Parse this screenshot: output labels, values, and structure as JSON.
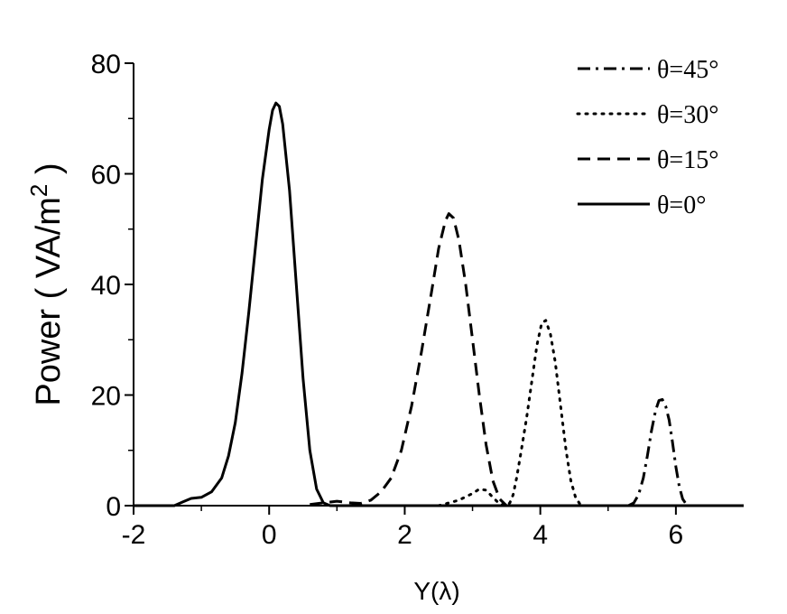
{
  "chart_data": {
    "type": "line",
    "title": "",
    "xlabel": "Y(λ)",
    "ylabel": "Power ( VA/m²)",
    "ylabel_main": "Power ( VA/m",
    "ylabel_sup": "2",
    "ylabel_end": " )",
    "xlim": [
      -2,
      7
    ],
    "ylim": [
      0,
      80
    ],
    "x_ticks": [
      -2,
      0,
      2,
      4,
      6
    ],
    "y_ticks": [
      0,
      20,
      40,
      60,
      80
    ],
    "grid": false,
    "legend_position": "top-right",
    "series": [
      {
        "name": "θ=45°",
        "dash": "dash-dot",
        "points": [
          [
            5.3,
            0
          ],
          [
            5.38,
            0.5
          ],
          [
            5.45,
            2
          ],
          [
            5.52,
            5
          ],
          [
            5.58,
            9
          ],
          [
            5.64,
            13.5
          ],
          [
            5.7,
            17.2
          ],
          [
            5.75,
            19
          ],
          [
            5.8,
            19.2
          ],
          [
            5.85,
            18
          ],
          [
            5.9,
            15.5
          ],
          [
            5.95,
            11.5
          ],
          [
            6.0,
            7
          ],
          [
            6.05,
            3.5
          ],
          [
            6.1,
            1.2
          ],
          [
            6.15,
            0.3
          ],
          [
            6.2,
            0
          ]
        ]
      },
      {
        "name": "θ=30°",
        "dash": "dotted",
        "points": [
          [
            2.5,
            0
          ],
          [
            2.8,
            1
          ],
          [
            3.0,
            2.2
          ],
          [
            3.1,
            3
          ],
          [
            3.2,
            2.8
          ],
          [
            3.3,
            1.5
          ],
          [
            3.4,
            0.3
          ],
          [
            3.5,
            0
          ],
          [
            3.55,
            0.5
          ],
          [
            3.6,
            2
          ],
          [
            3.65,
            5
          ],
          [
            3.72,
            10
          ],
          [
            3.8,
            16
          ],
          [
            3.88,
            23
          ],
          [
            3.95,
            29
          ],
          [
            4.02,
            33
          ],
          [
            4.08,
            33.5
          ],
          [
            4.15,
            31
          ],
          [
            4.22,
            26
          ],
          [
            4.3,
            18
          ],
          [
            4.38,
            10
          ],
          [
            4.45,
            4.5
          ],
          [
            4.52,
            1.5
          ],
          [
            4.6,
            0
          ]
        ]
      },
      {
        "name": "θ=15°",
        "dash": "dashed",
        "points": [
          [
            0.6,
            0.2
          ],
          [
            0.8,
            0.5
          ],
          [
            1.0,
            0.8
          ],
          [
            1.2,
            0.5
          ],
          [
            1.35,
            0.4
          ],
          [
            1.5,
            1
          ],
          [
            1.65,
            2.5
          ],
          [
            1.8,
            5
          ],
          [
            1.95,
            10
          ],
          [
            2.1,
            18
          ],
          [
            2.25,
            28
          ],
          [
            2.4,
            39
          ],
          [
            2.5,
            46.5
          ],
          [
            2.6,
            51.5
          ],
          [
            2.65,
            52.8
          ],
          [
            2.72,
            52
          ],
          [
            2.8,
            48
          ],
          [
            2.9,
            40
          ],
          [
            3.0,
            30
          ],
          [
            3.1,
            20
          ],
          [
            3.2,
            11
          ],
          [
            3.3,
            4.5
          ],
          [
            3.4,
            1.2
          ],
          [
            3.5,
            0
          ]
        ]
      },
      {
        "name": "θ=0°",
        "dash": "solid",
        "points": [
          [
            -2,
            0
          ],
          [
            -1.4,
            0
          ],
          [
            -1.25,
            0.8
          ],
          [
            -1.15,
            1.3
          ],
          [
            -1.0,
            1.5
          ],
          [
            -0.85,
            2.5
          ],
          [
            -0.7,
            5
          ],
          [
            -0.6,
            9
          ],
          [
            -0.5,
            15
          ],
          [
            -0.4,
            24
          ],
          [
            -0.3,
            35
          ],
          [
            -0.2,
            47
          ],
          [
            -0.1,
            59
          ],
          [
            0.0,
            68
          ],
          [
            0.05,
            71.5
          ],
          [
            0.1,
            72.8
          ],
          [
            0.15,
            72.2
          ],
          [
            0.2,
            69
          ],
          [
            0.3,
            57
          ],
          [
            0.4,
            40
          ],
          [
            0.5,
            23
          ],
          [
            0.6,
            10
          ],
          [
            0.7,
            3
          ],
          [
            0.8,
            0.5
          ],
          [
            0.9,
            0
          ],
          [
            7,
            0
          ]
        ]
      }
    ]
  }
}
